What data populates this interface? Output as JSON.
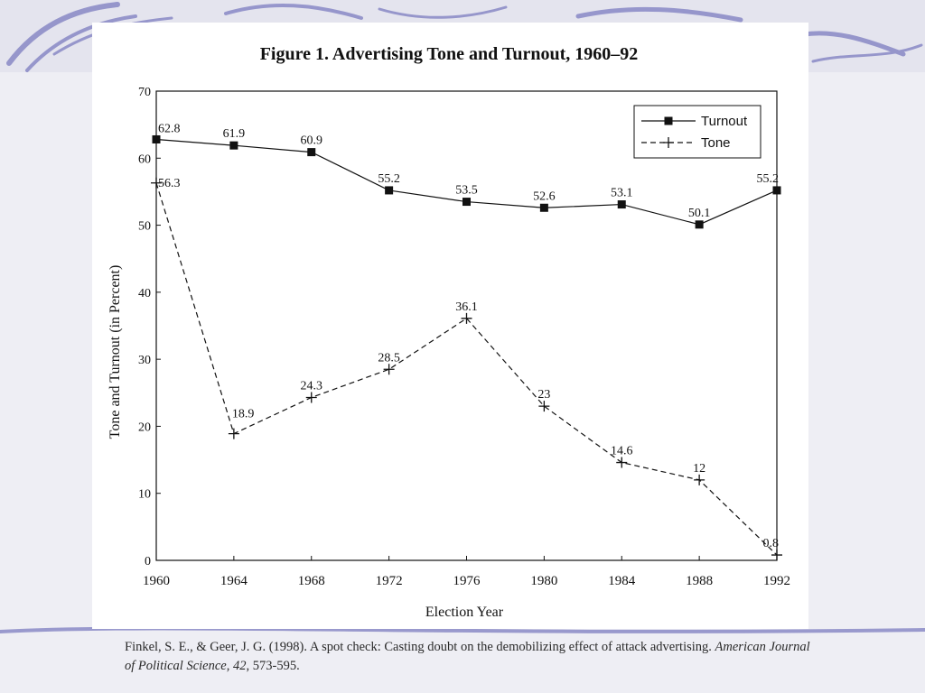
{
  "slide": {
    "colors": {
      "background": "#eeeef4",
      "swirl": "#7c7cc0",
      "panel": "#ffffff",
      "ink": "#1a1a1a"
    },
    "citation": {
      "part1": "Finkel, S. E., & Geer, J. G.  (1998).  A spot check:  Casting doubt on the demobilizing effect of attack advertising. ",
      "journal": "American Journal of Political Science",
      "sep": ", ",
      "volume": "42",
      "pages": ", 573-595."
    }
  },
  "chart_data": {
    "type": "line",
    "title": "Figure 1. Advertising Tone and Turnout, 1960–92",
    "xlabel": "Election Year",
    "ylabel": "Tone and Turnout (in Percent)",
    "x": [
      1960,
      1964,
      1968,
      1972,
      1976,
      1980,
      1984,
      1988,
      1992
    ],
    "x_tick_labels": [
      "1960",
      "1964",
      "1968",
      "1972",
      "1976",
      "1980",
      "1984",
      "1988",
      "1992"
    ],
    "ylim": [
      0,
      70
    ],
    "y_ticks": [
      0,
      10,
      20,
      30,
      40,
      50,
      60,
      70
    ],
    "y_tick_labels": [
      "0",
      "10",
      "20",
      "30",
      "40",
      "50",
      "60",
      "70"
    ],
    "grid": false,
    "legend_position": "top-right",
    "series": [
      {
        "name": "Turnout",
        "style": "solid",
        "marker": "square",
        "values": [
          62.8,
          61.9,
          60.9,
          55.2,
          53.5,
          52.6,
          53.1,
          50.1,
          55.2
        ],
        "labels": [
          "62.8",
          "61.9",
          "60.9",
          "55.2",
          "53.5",
          "52.6",
          "53.1",
          "50.1",
          "55.2"
        ]
      },
      {
        "name": "Tone",
        "style": "dashed",
        "marker": "plus",
        "values": [
          56.3,
          18.9,
          24.3,
          28.5,
          36.1,
          23,
          14.6,
          12,
          0.8
        ],
        "labels": [
          "56.3",
          "18.9",
          "24.3",
          "28.5",
          "36.1",
          "23",
          "14.6",
          "12",
          "0.8"
        ]
      }
    ]
  }
}
